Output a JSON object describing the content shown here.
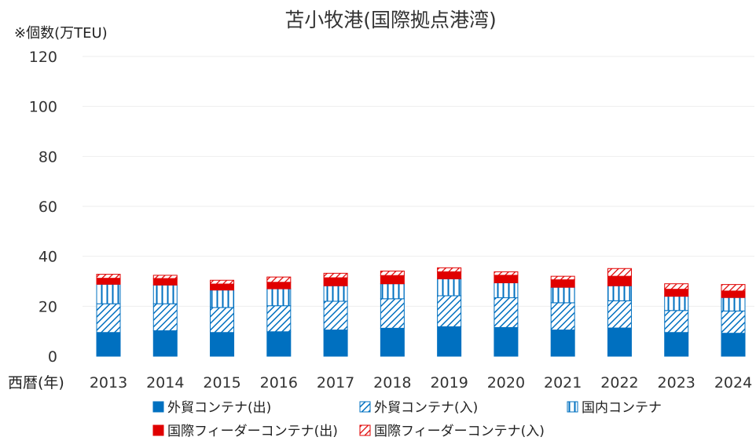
{
  "chart_data": {
    "type": "bar",
    "stacked": true,
    "title": "苫小牧港(国際拠点港湾)",
    "ylabel": "※個数(万TEU)",
    "xlabel": "西暦(年)",
    "ylim": [
      0,
      120
    ],
    "yticks": [
      0,
      20,
      40,
      60,
      80,
      100,
      120
    ],
    "grid": false,
    "legend_position": "bottom",
    "categories": [
      "2013",
      "2014",
      "2015",
      "2016",
      "2017",
      "2018",
      "2019",
      "2020",
      "2021",
      "2022",
      "2023",
      "2024"
    ],
    "series": [
      {
        "name": "外貿コンテナ(出)",
        "color": "#0070c0",
        "pattern": "solid",
        "values": [
          9.5,
          10.2,
          9.5,
          9.8,
          10.5,
          11.2,
          11.8,
          11.5,
          10.5,
          11.3,
          9.5,
          9.2
        ]
      },
      {
        "name": "外貿コンテナ(入)",
        "color": "#0070c0",
        "pattern": "diagonal",
        "values": [
          11.5,
          10.8,
          10.0,
          10.4,
          11.5,
          11.8,
          12.4,
          11.9,
          10.9,
          10.9,
          8.8,
          8.9
        ]
      },
      {
        "name": "国内コンテナ",
        "color": "#0070c0",
        "pattern": "vertical",
        "values": [
          7.8,
          7.5,
          7.0,
          6.8,
          6.2,
          6.0,
          6.8,
          6.0,
          6.2,
          6.0,
          5.7,
          5.4
        ]
      },
      {
        "name": "国際フィーダーコンテナ(出)",
        "color": "#e00000",
        "pattern": "solid",
        "values": [
          2.4,
          2.6,
          2.4,
          2.6,
          3.2,
          3.3,
          2.8,
          3.0,
          3.0,
          3.8,
          2.8,
          2.6
        ]
      },
      {
        "name": "国際フィーダーコンテナ(入)",
        "color": "#e00000",
        "pattern": "diagonal",
        "values": [
          1.6,
          1.3,
          1.5,
          2.1,
          1.8,
          1.8,
          1.6,
          1.4,
          1.4,
          3.1,
          2.2,
          2.6
        ]
      }
    ]
  }
}
